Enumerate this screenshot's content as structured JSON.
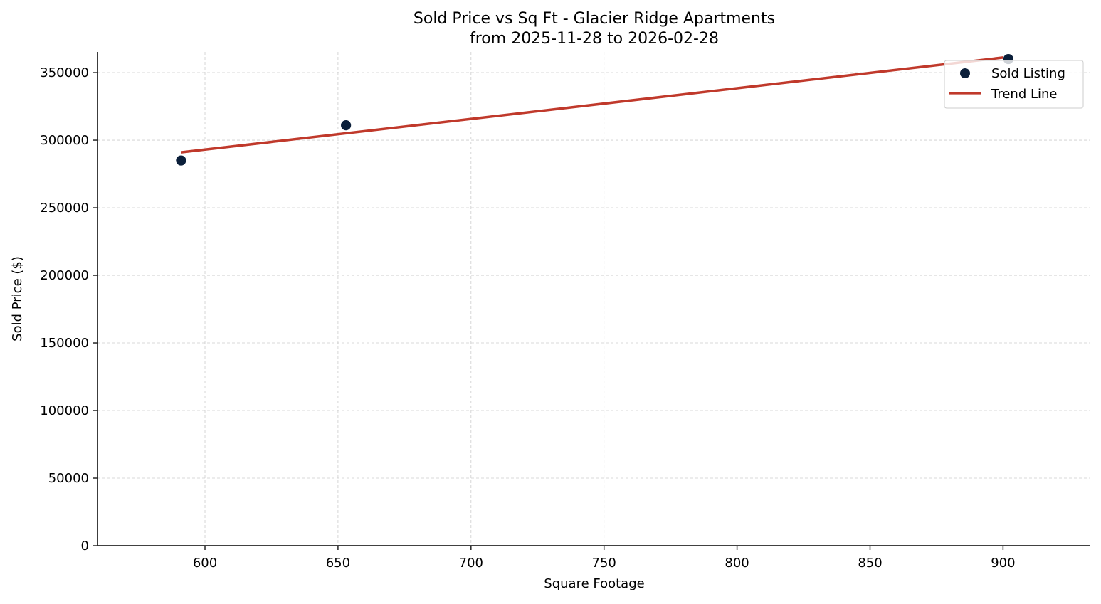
{
  "chart_data": {
    "type": "scatter",
    "title": "Sold Price vs Sq Ft - Glacier Ridge Apartments",
    "subtitle": "from 2025-11-28 to 2026-02-28",
    "xlabel": "Square Footage",
    "ylabel": "Sold Price ($)",
    "xlim": [
      559.6,
      932.8
    ],
    "ylim": [
      0,
      365300
    ],
    "x_ticks": [
      600,
      650,
      700,
      750,
      800,
      850,
      900
    ],
    "y_ticks": [
      0,
      50000,
      100000,
      150000,
      200000,
      250000,
      300000,
      350000
    ],
    "grid": true,
    "legend_position": "upper right",
    "series": [
      {
        "name": "Sold Listing",
        "kind": "scatter",
        "color": "#0b1f3a",
        "points": [
          {
            "x": 591,
            "y": 285000
          },
          {
            "x": 653,
            "y": 311000
          },
          {
            "x": 902,
            "y": 360000
          }
        ]
      },
      {
        "name": "Trend Line",
        "kind": "line",
        "color": "#c0392b",
        "points": [
          {
            "x": 591,
            "y": 291000
          },
          {
            "x": 902,
            "y": 361600
          }
        ]
      }
    ]
  },
  "legend": {
    "items": [
      {
        "label": "Sold Listing"
      },
      {
        "label": "Trend Line"
      }
    ]
  }
}
